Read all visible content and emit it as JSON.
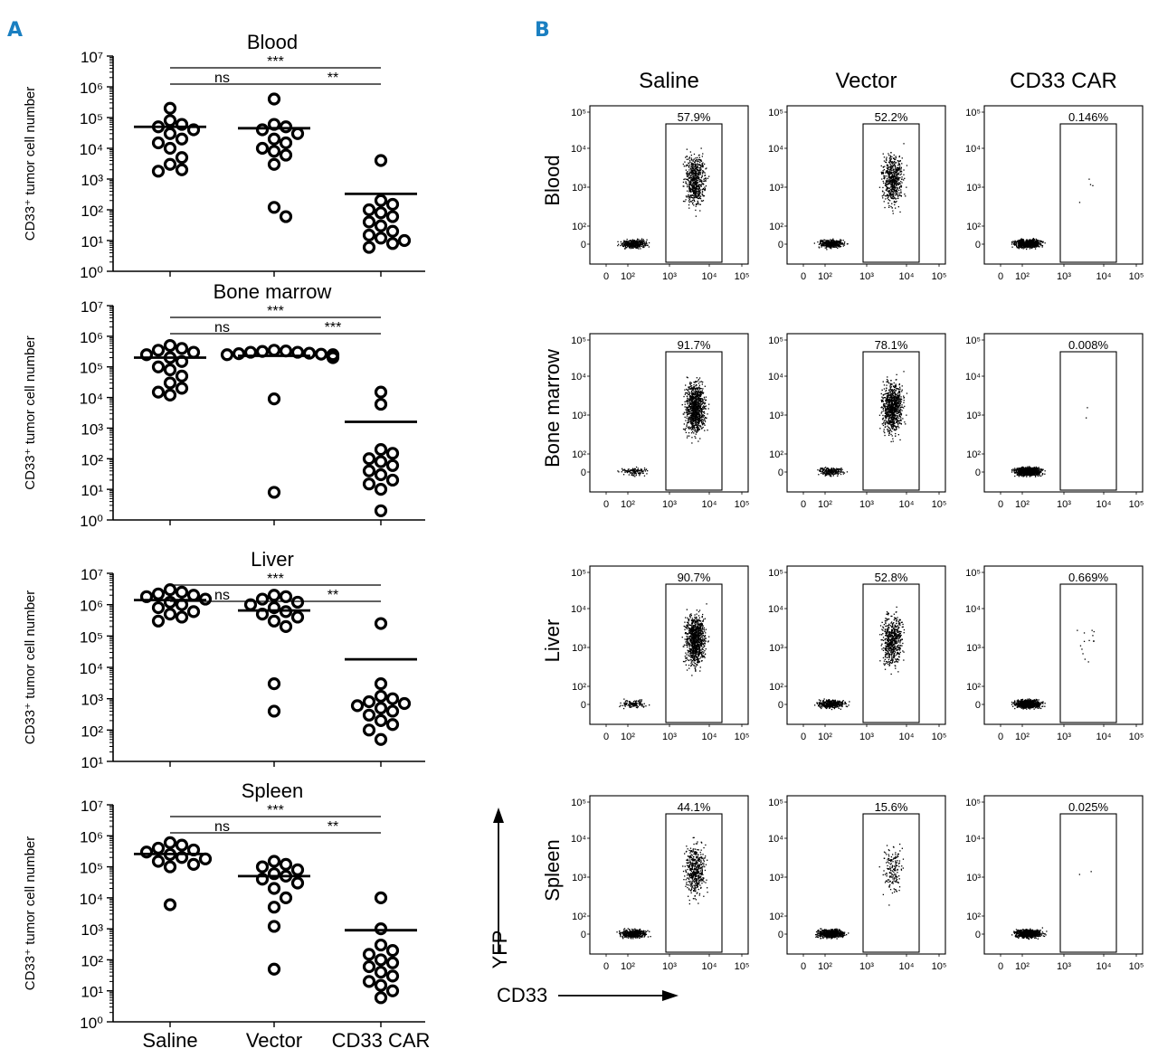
{
  "panel_labels": [
    "A",
    "B"
  ],
  "colors": {
    "ink": "#000000",
    "panel_letter": "#1a7fc1",
    "background": "#ffffff"
  },
  "chart_data": [
    {
      "type": "scatter",
      "panel": "A",
      "title": "Blood",
      "ylabel": "CD33⁺ tumor cell number",
      "yscale": "log",
      "ylim": [
        1,
        10000000
      ],
      "yticks": [
        "10⁰",
        "10¹",
        "10²",
        "10³",
        "10⁴",
        "10⁵",
        "10⁶",
        "10⁷"
      ],
      "categories": [
        "Saline",
        "Vector",
        "CD33 CAR"
      ],
      "series": [
        {
          "values": [
            200000,
            80000,
            60000,
            50000,
            40000,
            30000,
            20000,
            15000,
            10000,
            5000,
            3000,
            2000,
            1800
          ],
          "mean": 50000
        },
        {
          "values": [
            400000,
            60000,
            50000,
            40000,
            30000,
            20000,
            15000,
            10000,
            8000,
            6000,
            3000,
            120,
            60
          ],
          "mean": 45000
        },
        {
          "values": [
            4000,
            200,
            150,
            100,
            80,
            60,
            40,
            30,
            20,
            15,
            12,
            10,
            8,
            6
          ],
          "mean": 330
        }
      ],
      "significance": [
        {
          "pair": [
            "Saline",
            "CD33 CAR"
          ],
          "label": "***"
        },
        {
          "pair": [
            "Saline",
            "Vector"
          ],
          "label": "ns"
        },
        {
          "pair": [
            "Vector",
            "CD33 CAR"
          ],
          "label": "**"
        }
      ]
    },
    {
      "type": "scatter",
      "panel": "A",
      "title": "Bone marrow",
      "ylabel": "CD33⁺ tumor cell number",
      "yscale": "log",
      "ylim": [
        1,
        10000000
      ],
      "yticks": [
        "10⁰",
        "10¹",
        "10²",
        "10³",
        "10⁴",
        "10⁵",
        "10⁶",
        "10⁷"
      ],
      "categories": [
        "Saline",
        "Vector",
        "CD33 CAR"
      ],
      "series": [
        {
          "values": [
            500000,
            400000,
            350000,
            300000,
            250000,
            200000,
            150000,
            100000,
            80000,
            50000,
            30000,
            20000,
            15000,
            12000
          ],
          "mean": 200000
        },
        {
          "values": [
            350000,
            330000,
            320000,
            300000,
            300000,
            280000,
            270000,
            260000,
            250000,
            250000,
            240000,
            220000,
            200000,
            9000,
            8
          ],
          "mean": 230000
        },
        {
          "values": [
            15000,
            6000,
            200,
            150,
            100,
            80,
            60,
            40,
            30,
            20,
            15,
            10,
            2
          ],
          "mean": 1600
        }
      ],
      "significance": [
        {
          "pair": [
            "Saline",
            "CD33 CAR"
          ],
          "label": "***"
        },
        {
          "pair": [
            "Saline",
            "Vector"
          ],
          "label": "ns"
        },
        {
          "pair": [
            "Vector",
            "CD33 CAR"
          ],
          "label": "***"
        }
      ]
    },
    {
      "type": "scatter",
      "panel": "A",
      "title": "Liver",
      "ylabel": "CD33⁺ tumor cell number",
      "yscale": "log",
      "ylim": [
        10,
        10000000
      ],
      "yticks": [
        "10¹",
        "10²",
        "10³",
        "10⁴",
        "10⁵",
        "10⁶",
        "10⁷"
      ],
      "categories": [
        "Saline",
        "Vector",
        "CD33 CAR"
      ],
      "series": [
        {
          "values": [
            3000000,
            2500000,
            2200000,
            2000000,
            1800000,
            1500000,
            1200000,
            1000000,
            800000,
            600000,
            500000,
            400000,
            300000
          ],
          "mean": 1400000
        },
        {
          "values": [
            2000000,
            1800000,
            1500000,
            1200000,
            1000000,
            800000,
            600000,
            500000,
            400000,
            300000,
            200000,
            3000,
            400
          ],
          "mean": 650000
        },
        {
          "values": [
            250000,
            3000,
            1200,
            1000,
            800,
            700,
            600,
            500,
            400,
            300,
            200,
            150,
            100,
            50
          ],
          "mean": 18000
        }
      ],
      "significance": [
        {
          "pair": [
            "Saline",
            "CD33 CAR"
          ],
          "label": "***"
        },
        {
          "pair": [
            "Saline",
            "Vector"
          ],
          "label": "ns"
        },
        {
          "pair": [
            "Vector",
            "CD33 CAR"
          ],
          "label": "**"
        }
      ]
    },
    {
      "type": "scatter",
      "panel": "A",
      "title": "Spleen",
      "ylabel": "CD33⁺ tumor cell number",
      "yscale": "log",
      "ylim": [
        1,
        10000000
      ],
      "yticks": [
        "10⁰",
        "10¹",
        "10²",
        "10³",
        "10⁴",
        "10⁵",
        "10⁶",
        "10⁷"
      ],
      "categories": [
        "Saline",
        "Vector",
        "CD33 CAR"
      ],
      "series": [
        {
          "values": [
            600000,
            500000,
            400000,
            350000,
            300000,
            250000,
            200000,
            180000,
            150000,
            120000,
            100000,
            6000
          ],
          "mean": 260000
        },
        {
          "values": [
            150000,
            120000,
            100000,
            80000,
            60000,
            50000,
            40000,
            30000,
            20000,
            10000,
            5000,
            1200,
            50
          ],
          "mean": 50000
        },
        {
          "values": [
            10000,
            1000,
            300,
            200,
            150,
            100,
            80,
            60,
            40,
            30,
            20,
            15,
            10,
            6
          ],
          "mean": 900
        }
      ],
      "significance": [
        {
          "pair": [
            "Saline",
            "CD33 CAR"
          ],
          "label": "***"
        },
        {
          "pair": [
            "Saline",
            "Vector"
          ],
          "label": "ns"
        },
        {
          "pair": [
            "Vector",
            "CD33 CAR"
          ],
          "label": "**"
        }
      ]
    },
    {
      "type": "scatter",
      "panel": "B",
      "subtype": "flow-cytometry-dot-plot-grid",
      "xlabel": "CD33",
      "ylabel": "YFP",
      "xscale": "log",
      "yscale": "log",
      "xticks": [
        "0",
        "10²",
        "10³",
        "10⁴",
        "10⁵"
      ],
      "yticks": [
        "0",
        "10²",
        "10³",
        "10⁴",
        "10⁵"
      ],
      "columns": [
        "Saline",
        "Vector",
        "CD33 CAR"
      ],
      "rows": [
        "Blood",
        "Bone marrow",
        "Liver",
        "Spleen"
      ],
      "gate_percentages": [
        [
          "57.9%",
          "52.2%",
          "0.146%"
        ],
        [
          "91.7%",
          "78.1%",
          "0.008%"
        ],
        [
          "90.7%",
          "52.8%",
          "0.669%"
        ],
        [
          "44.1%",
          "15.6%",
          "0.025%"
        ]
      ]
    }
  ]
}
